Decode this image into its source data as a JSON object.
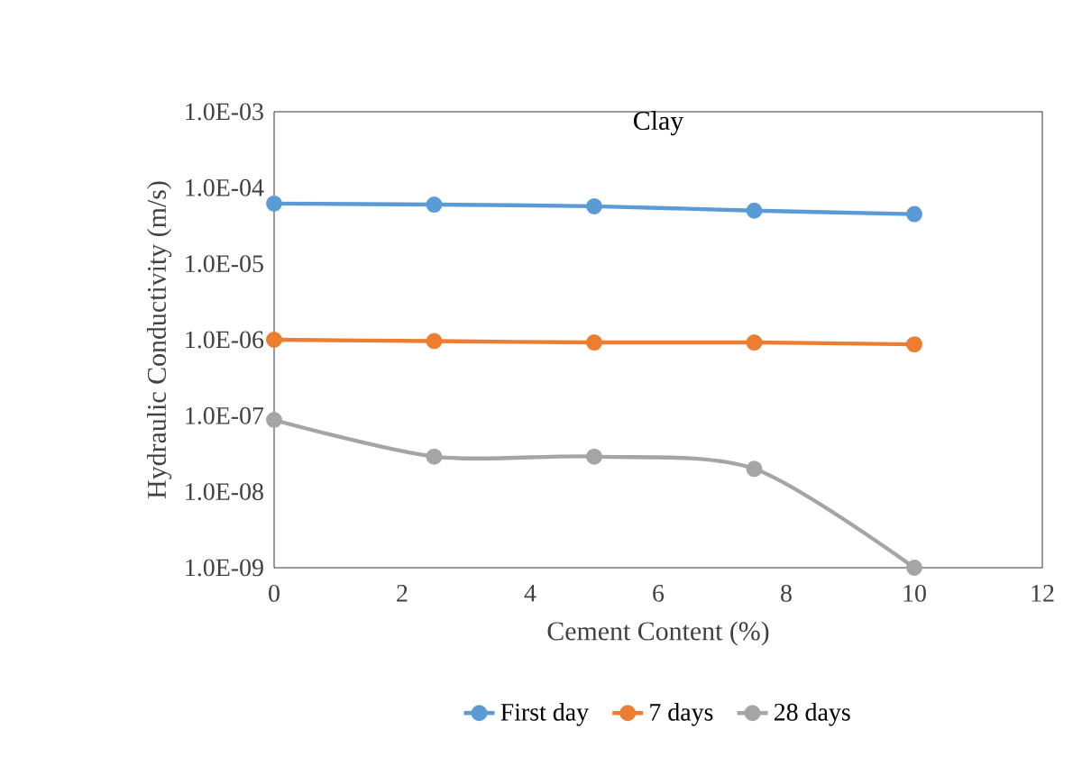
{
  "chart_data": {
    "type": "line",
    "title": "Clay",
    "xlabel": "Cement Content (%)",
    "ylabel": "Hydraulic Conductivity (m/s)",
    "x": [
      0,
      2.5,
      5,
      7.5,
      10
    ],
    "series": [
      {
        "name": "First day",
        "color": "#5b9bd5",
        "values": [
          6.2e-05,
          6e-05,
          5.7e-05,
          5e-05,
          4.5e-05
        ]
      },
      {
        "name": "7 days",
        "color": "#ed7d31",
        "values": [
          1e-06,
          9.6e-07,
          9.2e-07,
          9.2e-07,
          8.7e-07
        ]
      },
      {
        "name": "28 days",
        "color": "#a5a5a5",
        "values": [
          8.8e-08,
          2.9e-08,
          2.9e-08,
          2e-08,
          1e-09
        ]
      }
    ],
    "log": "y",
    "xlim": [
      0,
      12
    ],
    "ylim": [
      1e-09,
      0.001
    ],
    "xticks": [
      0,
      2,
      4,
      6,
      8,
      10,
      12
    ],
    "yticks": [
      {
        "value": 1e-09,
        "label": "1.0E-09"
      },
      {
        "value": 1e-08,
        "label": "1.0E-08"
      },
      {
        "value": 1e-07,
        "label": "1.0E-07"
      },
      {
        "value": 1e-06,
        "label": "1.0E-06"
      },
      {
        "value": 1e-05,
        "label": "1.0E-05"
      },
      {
        "value": 0.0001,
        "label": "1.0E-04"
      },
      {
        "value": 0.001,
        "label": "1.0E-03"
      }
    ],
    "grid": false,
    "legend": "bottom",
    "marker": "circle",
    "line_style": "solid"
  }
}
